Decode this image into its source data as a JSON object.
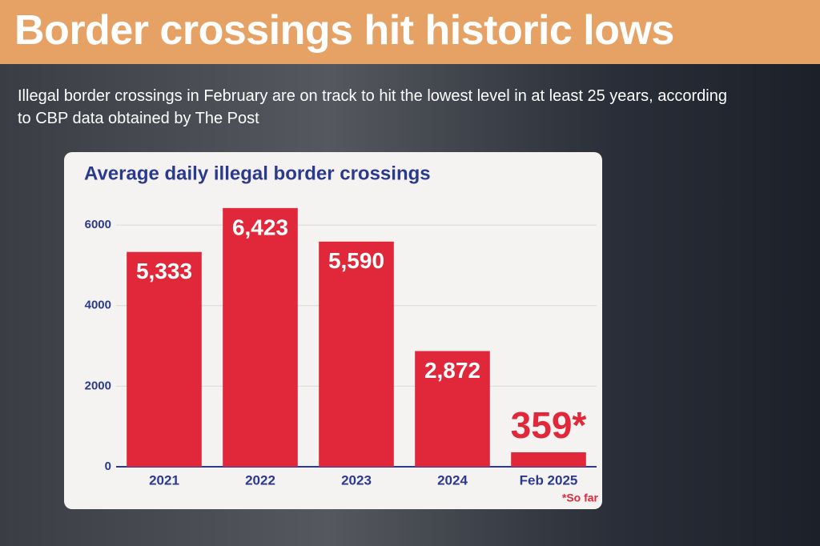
{
  "header": {
    "title": "Border crossings hit historic lows"
  },
  "subtitle": "Illegal border crossings in February are on track to hit the lowest level in at least 25 years, according to CBP data obtained by The Post",
  "chart_data": {
    "type": "bar",
    "title": "Average daily illegal border crossings",
    "categories": [
      "2021",
      "2022",
      "2023",
      "2024",
      "Feb 2025"
    ],
    "values": [
      5333,
      6423,
      5590,
      2872,
      359
    ],
    "value_labels": [
      "5,333",
      "6,423",
      "5,590",
      "2,872",
      "359*"
    ],
    "color": "#e0283a",
    "ylim": [
      0,
      6500
    ],
    "yticks": [
      0,
      2000,
      4000,
      6000
    ],
    "grid": true,
    "footnote": "*So far"
  }
}
